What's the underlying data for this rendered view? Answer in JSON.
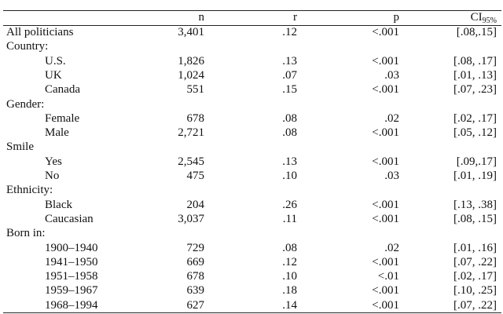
{
  "table": {
    "columns": [
      "n",
      "r",
      "p"
    ],
    "ci_label": "CI",
    "ci_sub": "95%",
    "body": [
      {
        "label": "All politicians",
        "cells": [
          "3,401",
          ".12",
          "<.001",
          "[.08,.15]"
        ]
      },
      {
        "label": "Country:",
        "rows": [
          {
            "label": "U.S.",
            "cells": [
              "1,826",
              ".13",
              "<.001",
              "[.08, .17]"
            ]
          },
          {
            "label": "UK",
            "cells": [
              "1,024",
              ".07",
              ".03",
              "[.01, .13]"
            ]
          },
          {
            "label": "Canada",
            "cells": [
              "551",
              ".15",
              "<.001",
              "[.07, .23]"
            ]
          }
        ]
      },
      {
        "label": "Gender:",
        "rows": [
          {
            "label": "Female",
            "cells": [
              "678",
              ".08",
              ".02",
              "[.02, .17]"
            ]
          },
          {
            "label": "Male",
            "cells": [
              "2,721",
              ".08",
              "<.001",
              "[.05, .12]"
            ]
          }
        ]
      },
      {
        "label": "Smile",
        "rows": [
          {
            "label": "Yes",
            "cells": [
              "2,545",
              ".13",
              "<.001",
              "[.09,.17]"
            ]
          },
          {
            "label": "No",
            "cells": [
              "475",
              ".10",
              ".03",
              "[.01, .19]"
            ]
          }
        ]
      },
      {
        "label": "Ethnicity:",
        "rows": [
          {
            "label": "Black",
            "cells": [
              "204",
              ".26",
              "<.001",
              "[.13, .38]"
            ]
          },
          {
            "label": "Caucasian",
            "cells": [
              "3,037",
              ".11",
              "<.001",
              "[.08, .15]"
            ]
          }
        ]
      },
      {
        "label": "Born in:",
        "rows": [
          {
            "label": "1900–1940",
            "cells": [
              "729",
              ".08",
              ".02",
              "[.01, .16]"
            ]
          },
          {
            "label": "1941–1950",
            "cells": [
              "669",
              ".12",
              "<.001",
              "[.07, .22]"
            ]
          },
          {
            "label": "1951–1958",
            "cells": [
              "678",
              ".10",
              "<.01",
              "[.02, .17]"
            ]
          },
          {
            "label": "1959–1967",
            "cells": [
              "639",
              ".18",
              "<.001",
              "[.10, .25]"
            ]
          },
          {
            "label": "1968–1994",
            "cells": [
              "627",
              ".14",
              "<.001",
              "[.07, .22]"
            ]
          }
        ]
      }
    ]
  }
}
